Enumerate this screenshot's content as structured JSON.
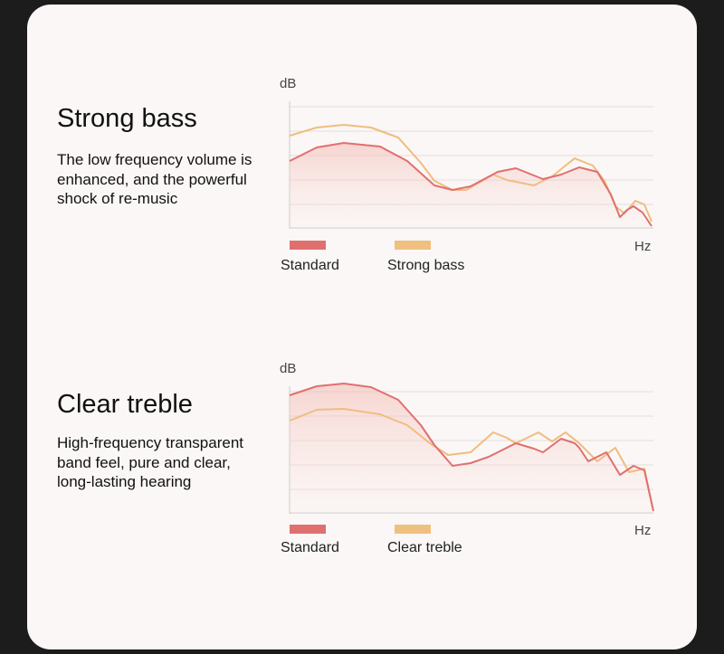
{
  "sections": [
    {
      "title": "Strong bass",
      "description": [
        "The low frequency volume is",
        "enhanced, and the powerful",
        "shock of re-music"
      ],
      "chart": {
        "y_label": "dB",
        "x_label": "Hz",
        "legend": [
          "Standard",
          "Strong bass"
        ]
      }
    },
    {
      "title": "Clear treble",
      "description": [
        "High-frequency transparent",
        "band feel, pure and clear,",
        "long-lasting hearing"
      ],
      "chart": {
        "y_label": "dB",
        "x_label": "Hz",
        "legend": [
          "Standard",
          "Clear treble"
        ]
      }
    }
  ]
}
